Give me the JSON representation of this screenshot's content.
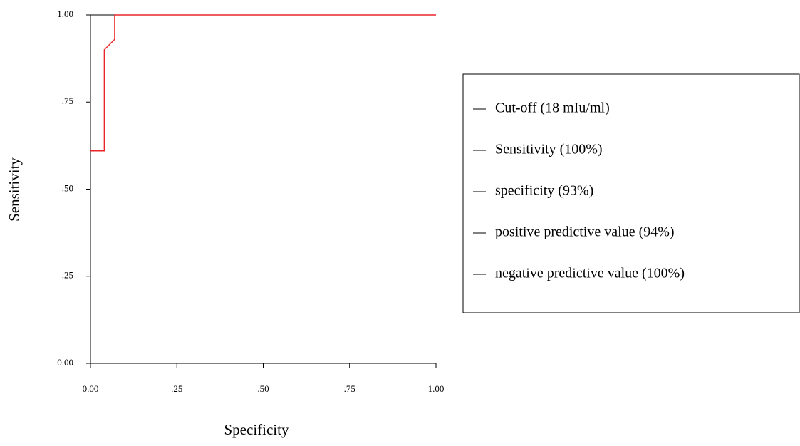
{
  "chart_data": {
    "type": "line",
    "x_label": "Specificity",
    "y_label": "Sensitivity",
    "x": [
      0,
      0.04,
      0.04,
      0.07,
      0.07,
      1
    ],
    "series": [
      {
        "color": "#e8262a",
        "values": [
          0.61,
          0.61,
          0.9,
          0.93,
          1,
          1
        ]
      }
    ],
    "xlim": [
      0,
      1
    ],
    "ylim": [
      0,
      1
    ],
    "xticks": [
      {
        "value": 0,
        "label": "0.00"
      },
      {
        "value": 0.25,
        "label": ".25"
      },
      {
        "value": 0.5,
        "label": ".50"
      },
      {
        "value": 0.75,
        "label": ".75"
      },
      {
        "value": 1,
        "label": "1.00"
      }
    ],
    "yticks": [
      {
        "value": 0,
        "label": "0.00"
      },
      {
        "value": 0.25,
        "label": ".25"
      },
      {
        "value": 0.5,
        "label": ".50"
      },
      {
        "value": 0.75,
        "label": ".75"
      },
      {
        "value": 1,
        "label": "1.00"
      }
    ],
    "legend_items": [
      "Cut-off (18 mIu/ml)",
      "Sensitivity (100%)",
      "specificity (93%)",
      "positive predictive value (94%)",
      "negative predictive value (100%)"
    ]
  }
}
